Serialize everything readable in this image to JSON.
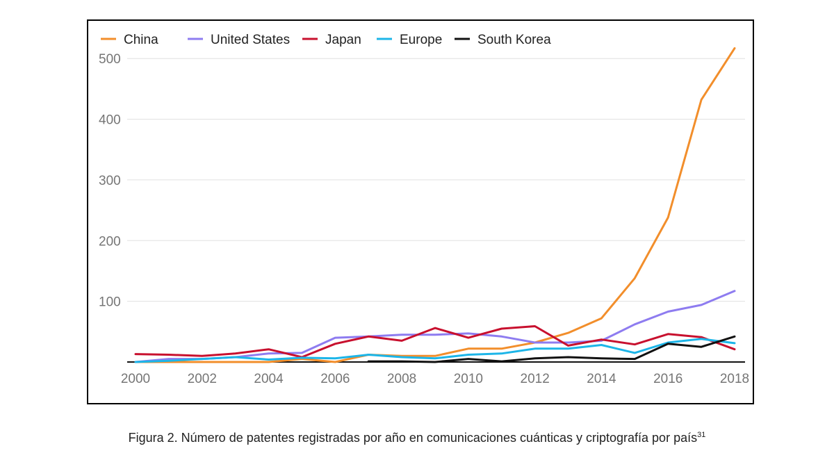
{
  "chart_data": {
    "type": "line",
    "x": [
      2000,
      2001,
      2002,
      2003,
      2004,
      2005,
      2006,
      2007,
      2008,
      2009,
      2010,
      2011,
      2012,
      2013,
      2014,
      2015,
      2016,
      2017,
      2018
    ],
    "x_ticks": [
      "2000",
      "2002",
      "2004",
      "2006",
      "2008",
      "2010",
      "2012",
      "2014",
      "2016",
      "2018"
    ],
    "y_ticks": [
      "100",
      "200",
      "300",
      "400",
      "500"
    ],
    "ylim": [
      0,
      530
    ],
    "xlim": [
      2000,
      2018
    ],
    "grid": true,
    "legend_position": "top-left",
    "series": [
      {
        "name": "China",
        "color": "#F28E2B",
        "values": [
          0,
          0,
          0,
          0,
          0,
          5,
          0,
          12,
          10,
          10,
          22,
          22,
          32,
          48,
          72,
          138,
          238,
          432,
          517
        ]
      },
      {
        "name": "United States",
        "color": "#8E7CF0",
        "values": [
          0,
          5,
          5,
          8,
          14,
          15,
          40,
          42,
          45,
          45,
          47,
          42,
          32,
          32,
          35,
          62,
          83,
          94,
          117
        ]
      },
      {
        "name": "Japan",
        "color": "#C8102E",
        "values": [
          13,
          12,
          10,
          14,
          21,
          8,
          30,
          42,
          35,
          56,
          40,
          55,
          59,
          27,
          37,
          29,
          46,
          41,
          21
        ]
      },
      {
        "name": "Europe",
        "color": "#1CB5E8",
        "values": [
          0,
          2,
          5,
          8,
          4,
          7,
          6,
          12,
          8,
          6,
          12,
          14,
          22,
          22,
          28,
          15,
          32,
          38,
          31
        ]
      },
      {
        "name": "South Korea",
        "color": "#111111",
        "values": [
          null,
          null,
          null,
          null,
          null,
          null,
          null,
          1,
          1,
          0,
          5,
          1,
          6,
          8,
          6,
          5,
          30,
          25,
          42
        ]
      }
    ]
  },
  "caption": {
    "text": "Figura 2. Número de patentes registradas por año en comunicaciones cuánticas y criptografía por país",
    "footnote": "31"
  }
}
